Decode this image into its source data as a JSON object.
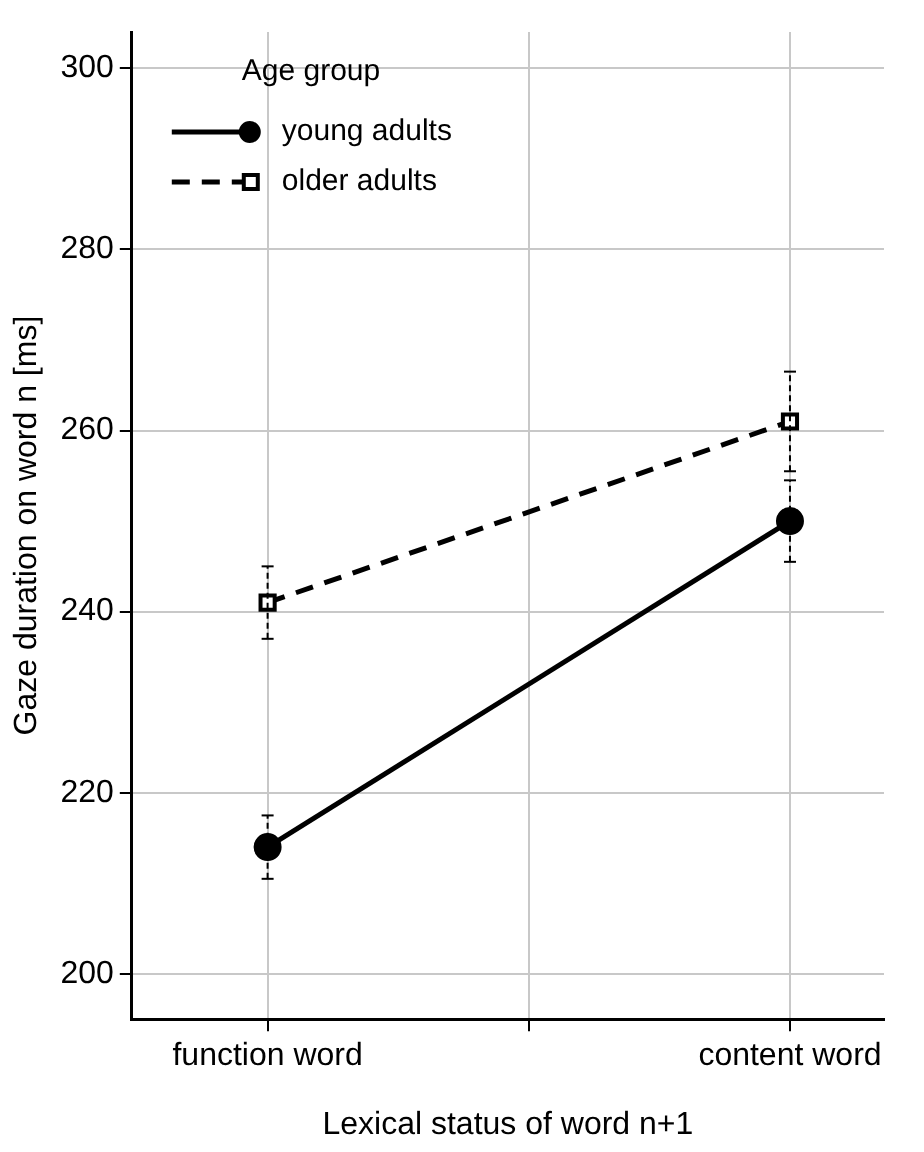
{
  "chart_data": {
    "type": "line",
    "xlabel": "Lexical status of word n+1",
    "ylabel": "Gaze duration on word n [ms]",
    "legend_title": "Age group",
    "categories": [
      "function word",
      "content word"
    ],
    "series": [
      {
        "name": "young adults",
        "color": "#000000",
        "values": [
          214,
          250
        ],
        "errors": [
          3.5,
          4.5
        ],
        "marker": "circle",
        "line_style": "solid"
      },
      {
        "name": "older adults",
        "color": "#000000",
        "values": [
          241,
          261
        ],
        "errors": [
          4,
          5.5
        ],
        "marker": "square",
        "line_style": "dashed"
      }
    ],
    "ylim": [
      195,
      304
    ],
    "yticks": [
      200,
      220,
      240,
      260,
      280,
      300
    ],
    "grid": true,
    "legend": "top left"
  }
}
